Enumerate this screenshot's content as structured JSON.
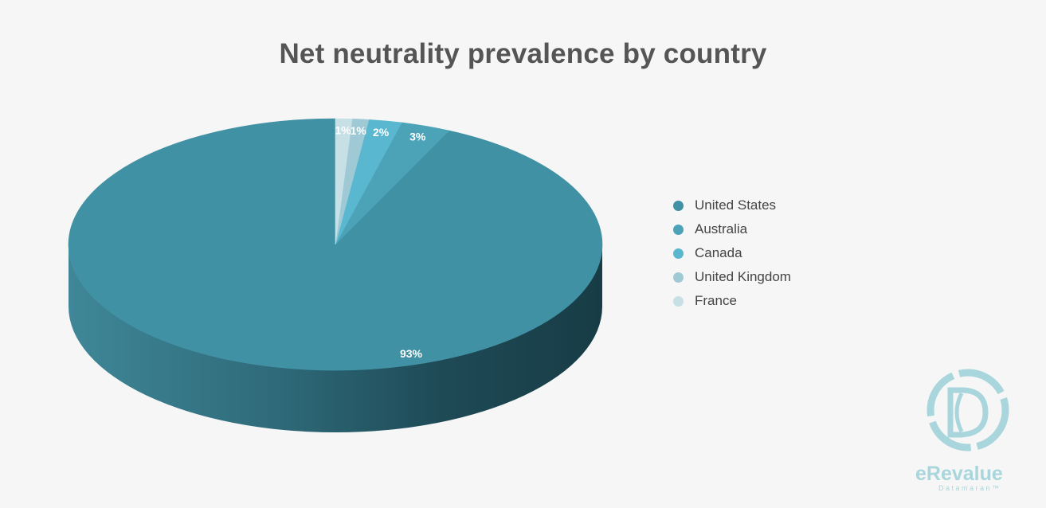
{
  "chart_data": {
    "type": "pie",
    "title": "Net neutrality prevalence by country",
    "categories": [
      "United States",
      "Australia",
      "Canada",
      "United Kingdom",
      "France"
    ],
    "values": [
      93,
      3,
      2,
      1,
      1
    ],
    "value_labels": [
      "93%",
      "3%",
      "2%",
      "1%",
      "1%"
    ],
    "colors": [
      "#4191a4",
      "#4ca3b8",
      "#59b8cf",
      "#9fcad5",
      "#c7e0e6"
    ],
    "legend_position": "right",
    "style": "3d"
  },
  "brand": {
    "name": "eRevalue",
    "tagline": "Datamaran™"
  }
}
